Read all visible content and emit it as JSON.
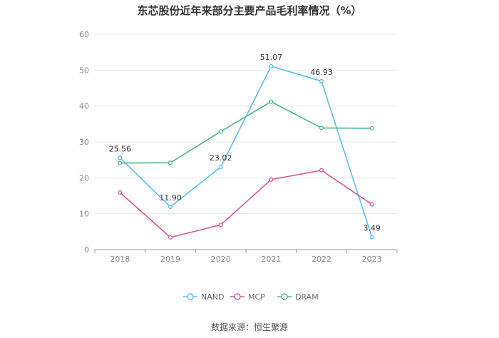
{
  "chart_data": {
    "type": "line",
    "title": "东芯股份近年来部分主要产品毛利率情况（%）",
    "categories": [
      "2018",
      "2019",
      "2020",
      "2021",
      "2022",
      "2023"
    ],
    "ylim": [
      0,
      60
    ],
    "yticks": [
      0,
      10,
      20,
      30,
      40,
      50,
      60
    ],
    "grid": true,
    "legend_position": "bottom",
    "series": [
      {
        "name": "NAND",
        "color": "#5bc0eb",
        "values": [
          25.56,
          11.9,
          23.02,
          51.07,
          46.93,
          3.49
        ],
        "labels": [
          "25.56",
          "11.90",
          "23.02",
          "51.07",
          "46.93",
          "3.49"
        ]
      },
      {
        "name": "MCP",
        "color": "#d9559e",
        "values": [
          15.9,
          3.4,
          6.9,
          19.5,
          22.1,
          12.6
        ]
      },
      {
        "name": "DRAM",
        "color": "#4db394",
        "values": [
          24.1,
          24.2,
          32.9,
          41.2,
          33.9,
          33.8
        ]
      }
    ]
  },
  "source": "数据来源：恒生聚源"
}
